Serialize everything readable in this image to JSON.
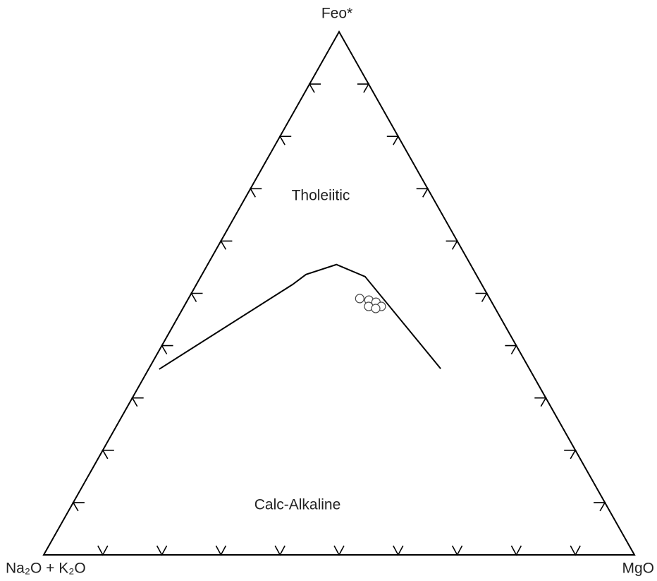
{
  "chart_data": {
    "type": "ternary",
    "apex_labels": {
      "top": "Feo*",
      "left": "Na₂O + K₂O",
      "right": "MgO"
    },
    "region_labels": [
      "Tholeiitic",
      "Calc-Alkaline"
    ],
    "ticks": [
      10,
      20,
      30,
      40,
      50,
      60,
      70,
      80,
      90
    ],
    "lim": [
      0,
      100
    ],
    "boundary": {
      "f": [
        35.5,
        51.7,
        53.6,
        55.5,
        53.2,
        35.6
      ],
      "m": [
        1.8,
        16.3,
        17.6,
        21.8,
        27.8,
        49.4
      ],
      "a": [
        62.7,
        32.0,
        28.8,
        22.7,
        19.0,
        15.0
      ]
    },
    "points": {
      "f": [
        49.0,
        48.7,
        48.3,
        47.5,
        47.5,
        47.1
      ],
      "m": [
        29.0,
        30.7,
        32.1,
        33.4,
        31.25,
        32.65
      ],
      "a": [
        22.0,
        20.6,
        19.6,
        19.1,
        21.25,
        20.25
      ]
    },
    "color": "#000000"
  }
}
